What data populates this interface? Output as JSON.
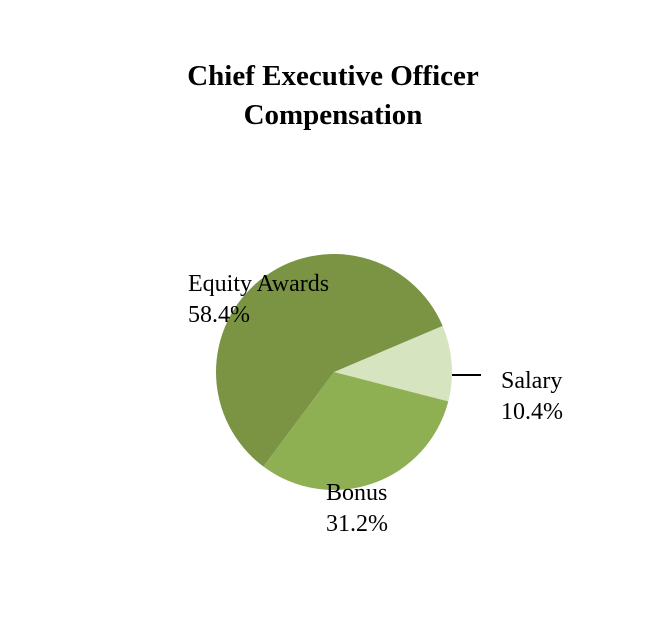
{
  "chart_data": {
    "type": "pie",
    "title_lines": [
      "Chief Executive Officer",
      "Compensation"
    ],
    "slices": [
      {
        "label": "Salary",
        "value": 10.4,
        "display": "10.4%",
        "color": "#d6e4c0"
      },
      {
        "label": "Bonus",
        "value": 31.2,
        "display": "31.2%",
        "color": "#8faf53"
      },
      {
        "label": "Equity Awards",
        "value": 58.4,
        "display": "58.4%",
        "color": "#7a9444"
      }
    ],
    "legend": "none"
  }
}
